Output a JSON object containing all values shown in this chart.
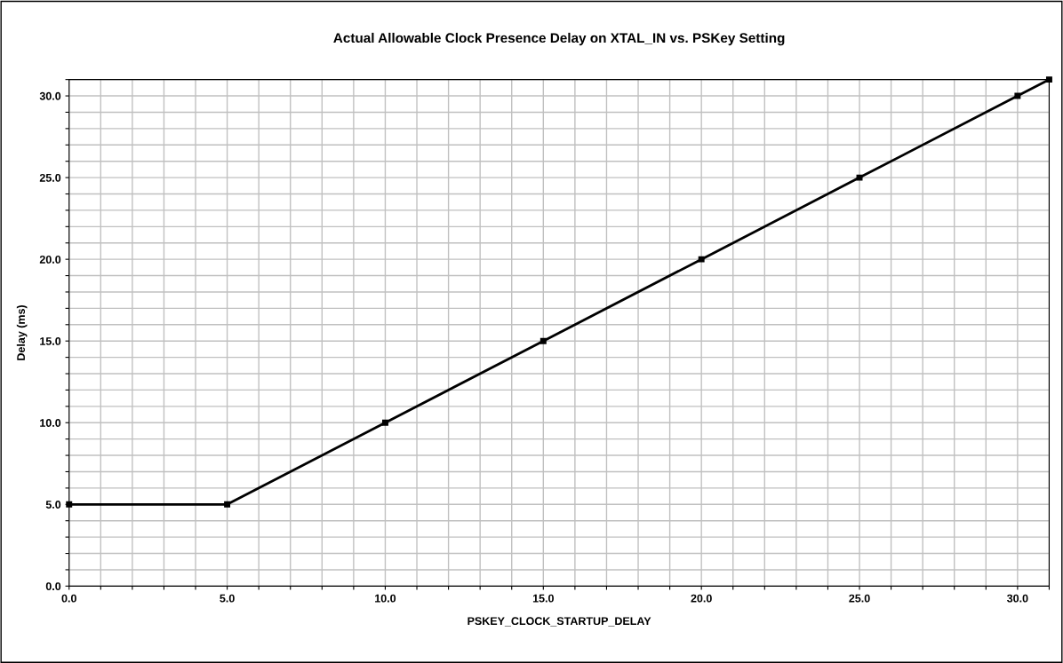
{
  "chart_data": {
    "type": "line",
    "title": "Actual Allowable Clock Presence Delay on XTAL_IN vs. PSKey Setting",
    "xlabel": "PSKEY_CLOCK_STARTUP_DELAY",
    "ylabel": "Delay (ms)",
    "x": [
      0,
      5,
      10,
      15,
      20,
      25,
      30,
      31
    ],
    "series": [
      {
        "color": "#000000",
        "values": [
          5,
          5,
          10,
          15,
          20,
          25,
          30,
          31
        ]
      }
    ],
    "marker": "square",
    "line_style": "solid",
    "grid": true,
    "legend": false,
    "xlim": [
      0,
      31
    ],
    "ylim": [
      0,
      31
    ],
    "xticks": [
      {
        "value": 0,
        "label": "0.0"
      },
      {
        "value": 1,
        "label": null
      },
      {
        "value": 2,
        "label": null
      },
      {
        "value": 3,
        "label": null
      },
      {
        "value": 4,
        "label": null
      },
      {
        "value": 5,
        "label": "5.0"
      },
      {
        "value": 6,
        "label": null
      },
      {
        "value": 7,
        "label": null
      },
      {
        "value": 8,
        "label": null
      },
      {
        "value": 9,
        "label": null
      },
      {
        "value": 10,
        "label": "10.0"
      },
      {
        "value": 11,
        "label": null
      },
      {
        "value": 12,
        "label": null
      },
      {
        "value": 13,
        "label": null
      },
      {
        "value": 14,
        "label": null
      },
      {
        "value": 15,
        "label": "15.0"
      },
      {
        "value": 16,
        "label": null
      },
      {
        "value": 17,
        "label": null
      },
      {
        "value": 18,
        "label": null
      },
      {
        "value": 19,
        "label": null
      },
      {
        "value": 20,
        "label": "20.0"
      },
      {
        "value": 21,
        "label": null
      },
      {
        "value": 22,
        "label": null
      },
      {
        "value": 23,
        "label": null
      },
      {
        "value": 24,
        "label": null
      },
      {
        "value": 25,
        "label": "25.0"
      },
      {
        "value": 26,
        "label": null
      },
      {
        "value": 27,
        "label": null
      },
      {
        "value": 28,
        "label": null
      },
      {
        "value": 29,
        "label": null
      },
      {
        "value": 30,
        "label": "30.0"
      },
      {
        "value": 31,
        "label": null
      }
    ],
    "yticks": [
      {
        "value": 0,
        "label": "0.0"
      },
      {
        "value": 1,
        "label": null
      },
      {
        "value": 2,
        "label": null
      },
      {
        "value": 3,
        "label": null
      },
      {
        "value": 4,
        "label": null
      },
      {
        "value": 5,
        "label": "5.0"
      },
      {
        "value": 6,
        "label": null
      },
      {
        "value": 7,
        "label": null
      },
      {
        "value": 8,
        "label": null
      },
      {
        "value": 9,
        "label": null
      },
      {
        "value": 10,
        "label": "10.0"
      },
      {
        "value": 11,
        "label": null
      },
      {
        "value": 12,
        "label": null
      },
      {
        "value": 13,
        "label": null
      },
      {
        "value": 14,
        "label": null
      },
      {
        "value": 15,
        "label": "15.0"
      },
      {
        "value": 16,
        "label": null
      },
      {
        "value": 17,
        "label": null
      },
      {
        "value": 18,
        "label": null
      },
      {
        "value": 19,
        "label": null
      },
      {
        "value": 20,
        "label": "20.0"
      },
      {
        "value": 21,
        "label": null
      },
      {
        "value": 22,
        "label": null
      },
      {
        "value": 23,
        "label": null
      },
      {
        "value": 24,
        "label": null
      },
      {
        "value": 25,
        "label": "25.0"
      },
      {
        "value": 26,
        "label": null
      },
      {
        "value": 27,
        "label": null
      },
      {
        "value": 28,
        "label": null
      },
      {
        "value": 29,
        "label": null
      },
      {
        "value": 30,
        "label": "30.0"
      },
      {
        "value": 31,
        "label": null
      }
    ]
  }
}
